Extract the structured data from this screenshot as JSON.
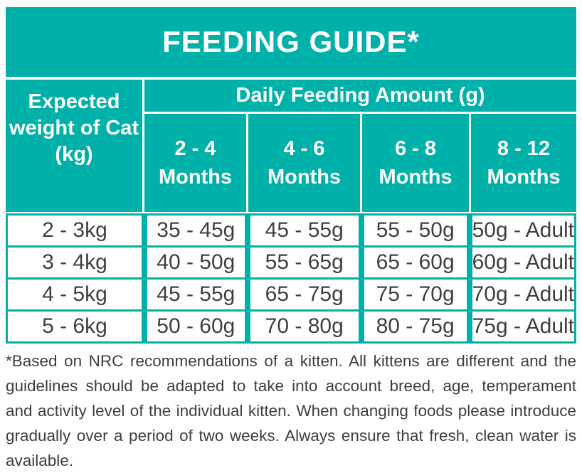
{
  "colors": {
    "teal": "#00b1aa",
    "header_text": "#ffffff",
    "body_text": "#3f3f3f",
    "cell_background": "#ffffff"
  },
  "title": "FEEDING GUIDE*",
  "table": {
    "corner_header": "Expected weight of Cat (kg)",
    "group_header": "Daily Feeding Amount (g)",
    "month_columns": [
      "2 - 4 Months",
      "4 - 6 Months",
      "6 - 8 Months",
      "8 - 12 Months"
    ],
    "rows": [
      {
        "weight": "2 - 3kg",
        "values": [
          "35 - 45g",
          "45 - 55g",
          "55 - 50g",
          "50g - Adult"
        ]
      },
      {
        "weight": "3 - 4kg",
        "values": [
          "40 - 50g",
          "55 - 65g",
          "65 - 60g",
          "60g - Adult"
        ]
      },
      {
        "weight": "4 - 5kg",
        "values": [
          "45 - 55g",
          "65 - 75g",
          "75 - 70g",
          "70g - Adult"
        ]
      },
      {
        "weight": "5 - 6kg",
        "values": [
          "50 - 60g",
          "70 - 80g",
          "80 - 75g",
          "75g - Adult"
        ]
      }
    ]
  },
  "footnote": {
    "lines": [
      "*Based on NRC recommendations of a kitten. All kittens are different and the",
      "guidelines should be adapted to take into account breed, age, temperament",
      "and activity level of the individual kitten. When changing foods please introduce",
      "gradually over a period of two weeks. Always ensure that fresh, clean water is",
      "available."
    ]
  }
}
